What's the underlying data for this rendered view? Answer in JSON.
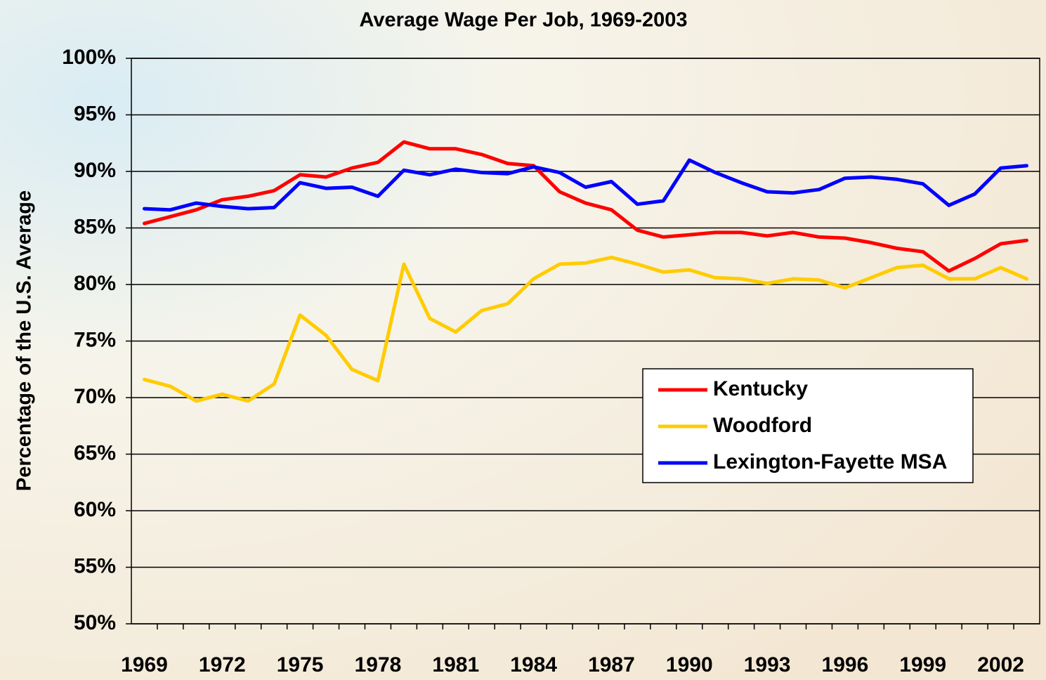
{
  "chart_data": {
    "type": "line",
    "title": "Average Wage Per Job, 1969-2003",
    "ylabel": "Percentage of the U.S. Average",
    "categories": [
      "1969",
      null,
      null,
      "1972",
      null,
      null,
      "1975",
      null,
      null,
      "1978",
      null,
      null,
      "1981",
      null,
      null,
      "1984",
      null,
      null,
      "1987",
      null,
      null,
      "1990",
      null,
      null,
      "1993",
      null,
      null,
      "1996",
      null,
      null,
      "1999",
      null,
      null,
      "2002",
      null
    ],
    "series": [
      {
        "name": "Kentucky",
        "color": "#ff0000",
        "values": [
          85.4,
          86.0,
          86.6,
          87.5,
          87.8,
          88.3,
          89.7,
          89.5,
          90.3,
          90.8,
          92.6,
          92.0,
          92.0,
          91.5,
          90.7,
          90.5,
          88.2,
          87.2,
          86.6,
          84.8,
          84.2,
          84.4,
          84.6,
          84.6,
          84.3,
          84.6,
          84.2,
          84.1,
          83.7,
          83.2,
          82.9,
          81.2,
          82.3,
          83.6,
          83.9
        ]
      },
      {
        "name": "Woodford",
        "color": "#ffcc00",
        "values": [
          71.6,
          71.0,
          69.7,
          70.3,
          69.7,
          71.2,
          77.3,
          75.5,
          72.5,
          71.5,
          81.8,
          77.0,
          75.8,
          77.7,
          78.3,
          80.5,
          81.8,
          81.9,
          82.4,
          81.8,
          81.1,
          81.3,
          80.6,
          80.5,
          80.1,
          80.5,
          80.4,
          79.7,
          80.6,
          81.5,
          81.7,
          80.5,
          80.5,
          81.5,
          80.5
        ]
      },
      {
        "name": "Lexington-Fayette MSA",
        "color": "#0000ff",
        "values": [
          86.7,
          86.6,
          87.2,
          86.9,
          86.7,
          86.8,
          89.0,
          88.5,
          88.6,
          87.8,
          90.1,
          89.7,
          90.2,
          89.9,
          89.8,
          90.4,
          89.9,
          88.6,
          89.1,
          87.1,
          87.4,
          91.0,
          89.9,
          89.0,
          88.2,
          88.1,
          88.4,
          89.4,
          89.5,
          89.3,
          88.9,
          87.0,
          88.0,
          90.3,
          90.5
        ]
      }
    ],
    "ylim": [
      50,
      100
    ],
    "yticks": [
      {
        "value": 50,
        "label": "50%"
      },
      {
        "value": 55,
        "label": "55%"
      },
      {
        "value": 60,
        "label": "60%"
      },
      {
        "value": 65,
        "label": "65%"
      },
      {
        "value": 70,
        "label": "70%"
      },
      {
        "value": 75,
        "label": "75%"
      },
      {
        "value": 80,
        "label": "80%"
      },
      {
        "value": 85,
        "label": "85%"
      },
      {
        "value": 90,
        "label": "90%"
      },
      {
        "value": 95,
        "label": "95%"
      },
      {
        "value": 100,
        "label": "100%"
      }
    ],
    "grid": true,
    "legend": "center right"
  }
}
